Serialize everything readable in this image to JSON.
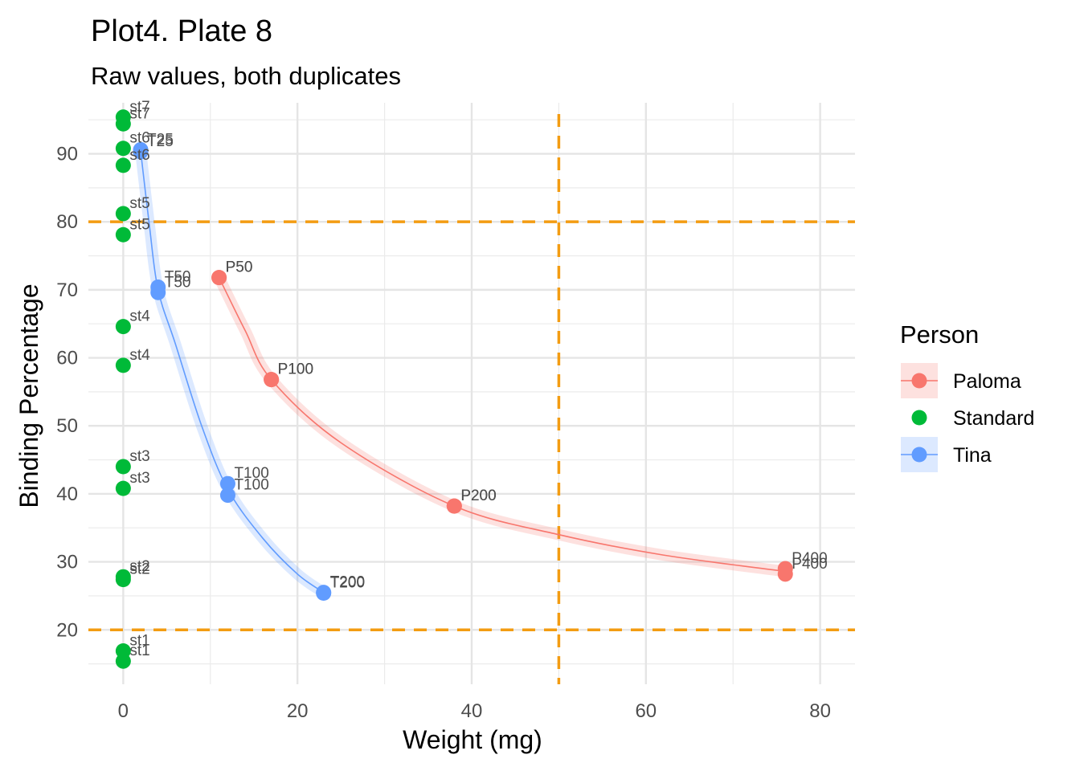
{
  "chart_data": {
    "type": "scatter",
    "title": "Plot4. Plate 8",
    "subtitle": "Raw values, both duplicates",
    "xlabel": "Weight (mg)",
    "ylabel": "Binding Percentage",
    "xlim": [
      -4,
      84
    ],
    "ylim": [
      12,
      97.5
    ],
    "x_ticks": [
      0,
      20,
      40,
      60,
      80
    ],
    "y_ticks": [
      20,
      30,
      40,
      50,
      60,
      70,
      80,
      90
    ],
    "grid": true,
    "legend": {
      "title": "Person",
      "position": "right",
      "entries": [
        {
          "label": "Paloma",
          "color": "#F8766D",
          "has_line": true
        },
        {
          "label": "Standard",
          "color": "#00BA38",
          "has_line": false
        },
        {
          "label": "Tina",
          "color": "#619CFF",
          "has_line": true
        }
      ]
    },
    "reference_lines": {
      "color": "#F39C12",
      "horizontal": [
        20,
        80
      ],
      "vertical": [
        50
      ]
    },
    "series": [
      {
        "name": "Paloma",
        "color": "#F8766D",
        "points": [
          {
            "x": 11,
            "y": 71.8,
            "label": "P50"
          },
          {
            "x": 11,
            "y": 71.8,
            "label": "P50"
          },
          {
            "x": 17,
            "y": 56.8,
            "label": "P100"
          },
          {
            "x": 17,
            "y": 56.8,
            "label": "P100"
          },
          {
            "x": 38,
            "y": 38.2,
            "label": "P200"
          },
          {
            "x": 38,
            "y": 38.2,
            "label": "P200"
          },
          {
            "x": 76,
            "y": 29.0,
            "label": "P400"
          },
          {
            "x": 76,
            "y": 28.2,
            "label": "P400"
          }
        ],
        "fit": [
          [
            11,
            71.8
          ],
          [
            14,
            64.0
          ],
          [
            17,
            56.8
          ],
          [
            25,
            47.5
          ],
          [
            38,
            38.2
          ],
          [
            50,
            34.0
          ],
          [
            62,
            31.0
          ],
          [
            76,
            28.6
          ]
        ]
      },
      {
        "name": "Standard",
        "color": "#00BA38",
        "points": [
          {
            "x": 0,
            "y": 95.4,
            "label": "st7"
          },
          {
            "x": 0,
            "y": 94.4,
            "label": "st7"
          },
          {
            "x": 0,
            "y": 90.8,
            "label": "st6"
          },
          {
            "x": 0,
            "y": 88.3,
            "label": "st6"
          },
          {
            "x": 0,
            "y": 81.2,
            "label": "st5"
          },
          {
            "x": 0,
            "y": 78.1,
            "label": "st5"
          },
          {
            "x": 0,
            "y": 64.6,
            "label": "st4"
          },
          {
            "x": 0,
            "y": 58.9,
            "label": "st4"
          },
          {
            "x": 0,
            "y": 44.0,
            "label": "st3"
          },
          {
            "x": 0,
            "y": 40.8,
            "label": "st3"
          },
          {
            "x": 0,
            "y": 27.8,
            "label": "st2"
          },
          {
            "x": 0,
            "y": 27.4,
            "label": "st2"
          },
          {
            "x": 0,
            "y": 16.9,
            "label": "st1"
          },
          {
            "x": 0,
            "y": 15.4,
            "label": "st1"
          }
        ]
      },
      {
        "name": "Tina",
        "color": "#619CFF",
        "points": [
          {
            "x": 2,
            "y": 90.6,
            "label": "T25"
          },
          {
            "x": 2,
            "y": 90.3,
            "label": "T25"
          },
          {
            "x": 4,
            "y": 70.4,
            "label": "T50"
          },
          {
            "x": 4,
            "y": 69.6,
            "label": "T50"
          },
          {
            "x": 12,
            "y": 41.5,
            "label": "T100"
          },
          {
            "x": 12,
            "y": 39.8,
            "label": "T100"
          },
          {
            "x": 23,
            "y": 25.5,
            "label": "T200"
          },
          {
            "x": 23,
            "y": 25.4,
            "label": "T200"
          }
        ],
        "fit": [
          [
            2,
            90.4
          ],
          [
            3,
            79.5
          ],
          [
            4,
            70.0
          ],
          [
            6,
            62.0
          ],
          [
            9,
            50.0
          ],
          [
            12,
            40.7
          ],
          [
            16,
            33.5
          ],
          [
            20,
            28.2
          ],
          [
            23,
            25.5
          ]
        ]
      }
    ]
  }
}
